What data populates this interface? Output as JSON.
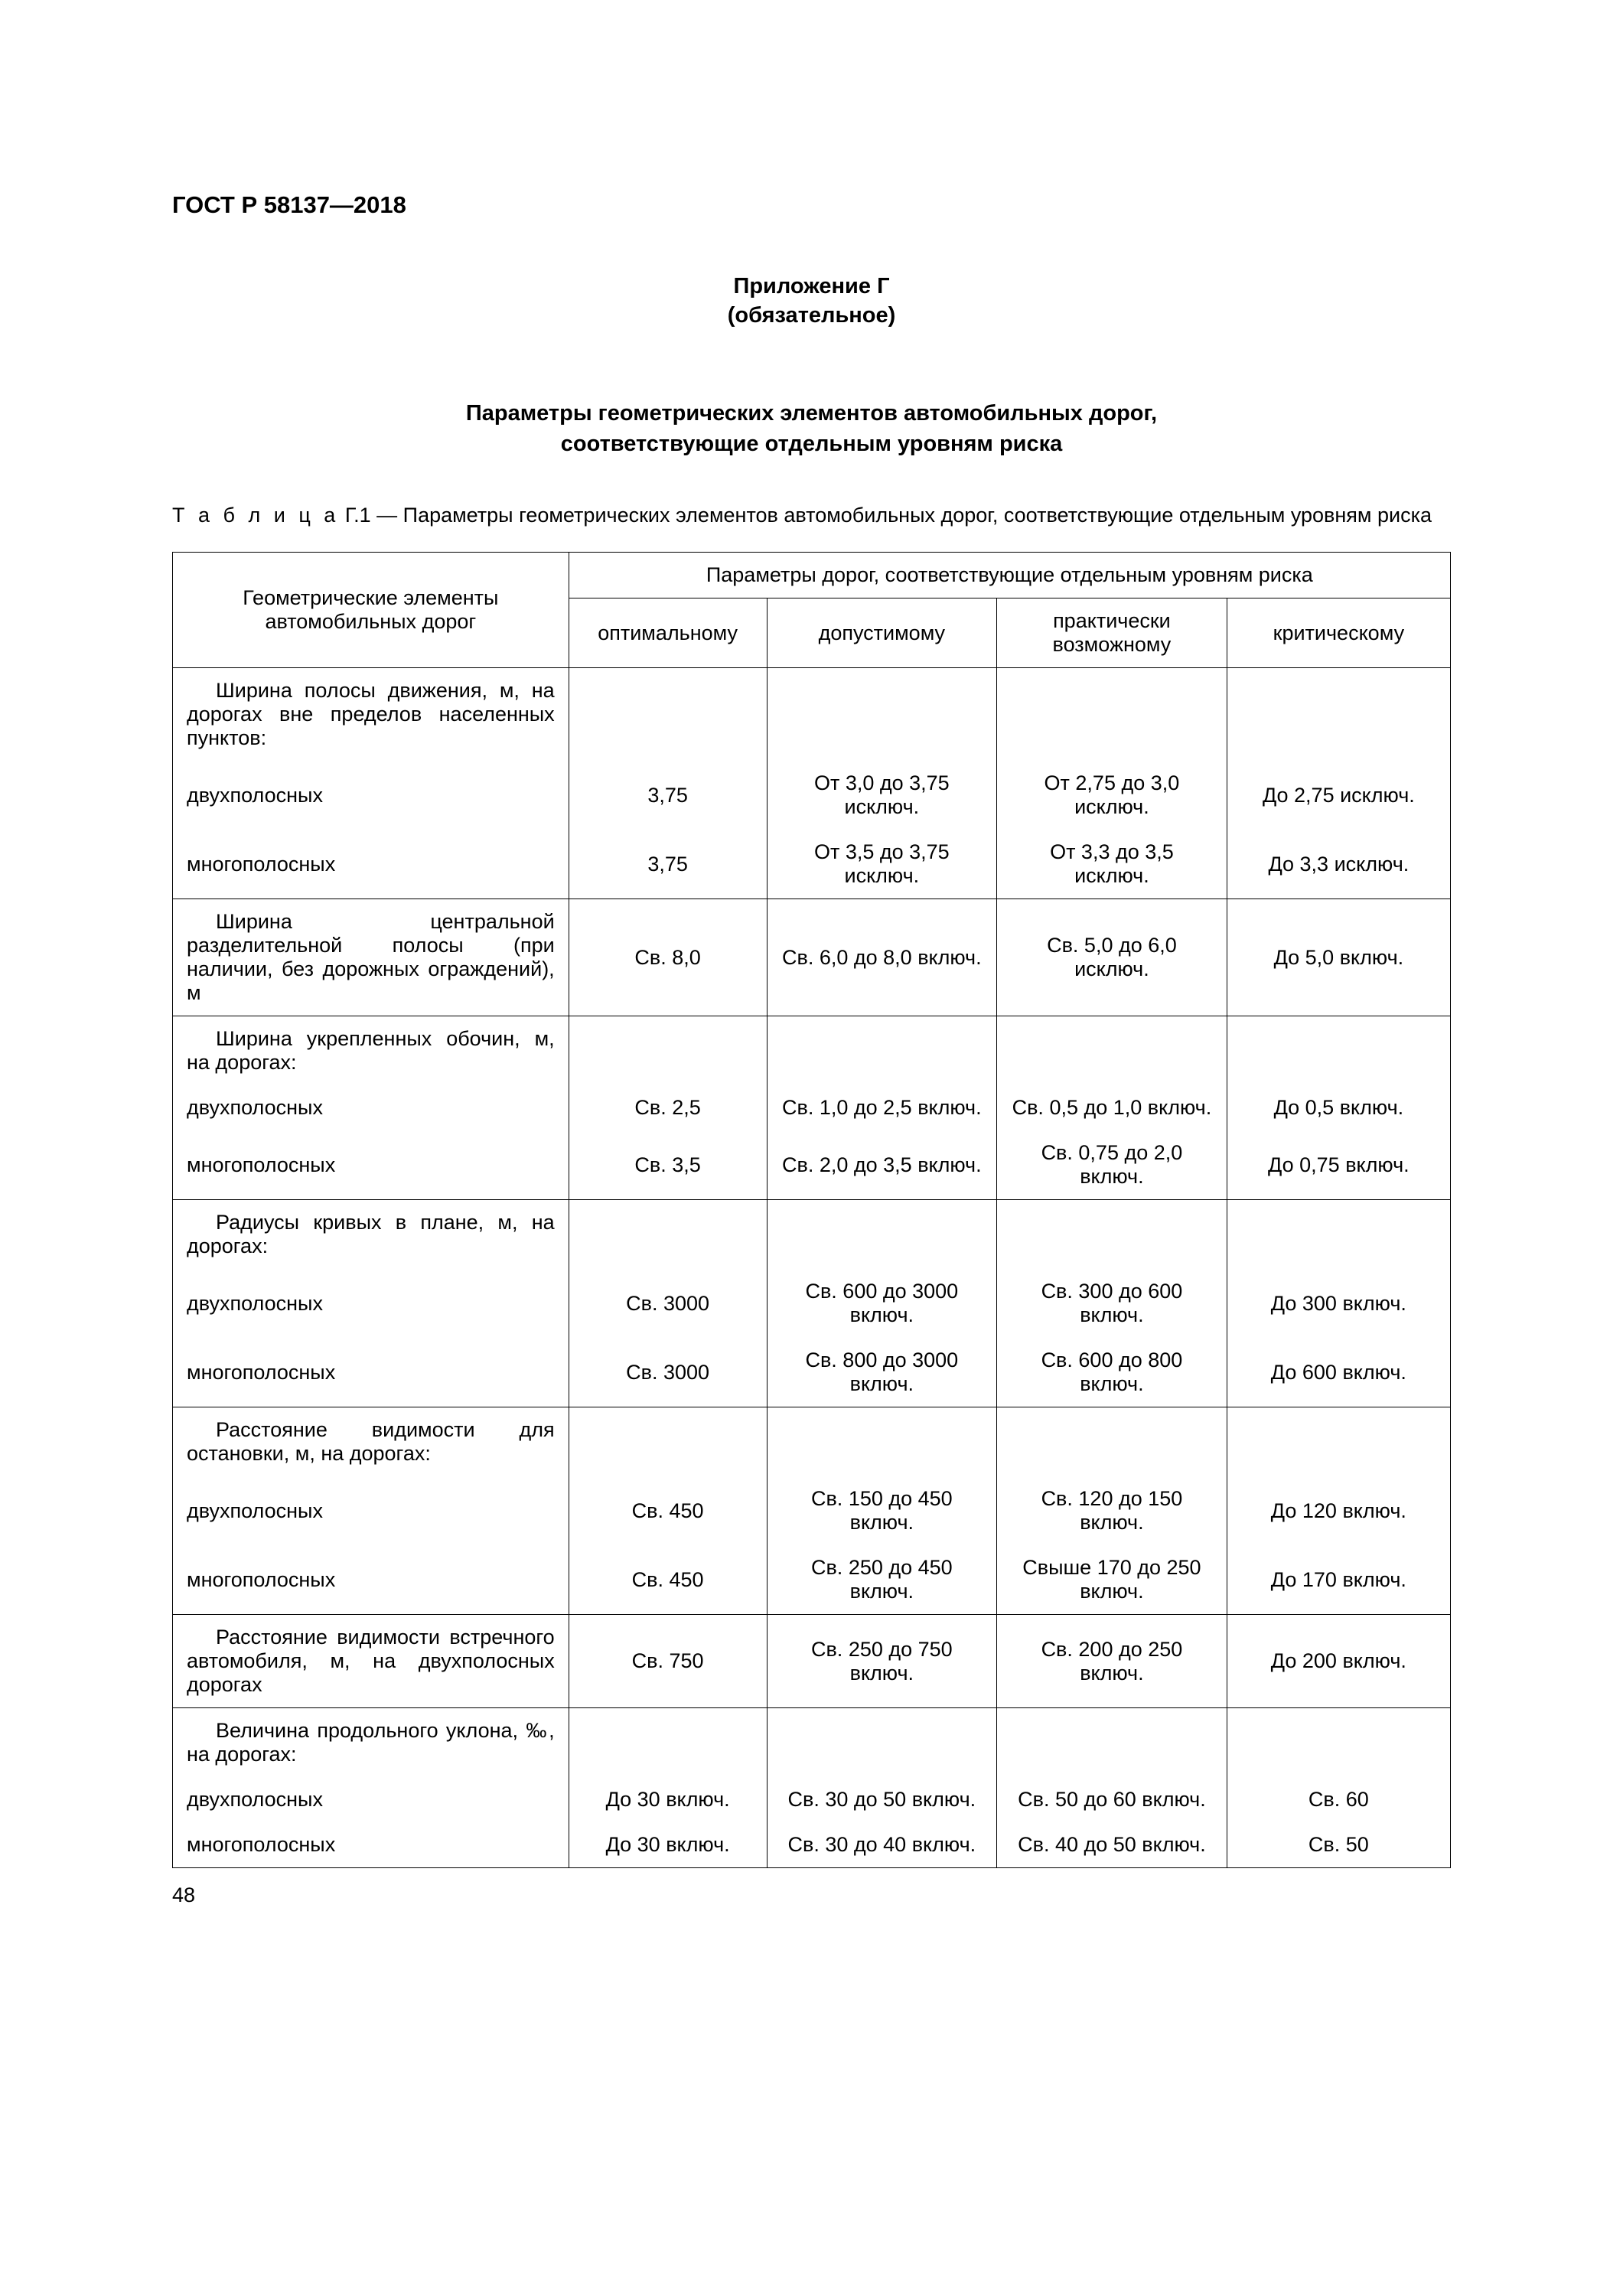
{
  "doc_id": "ГОСТ Р 58137—2018",
  "appendix_line1": "Приложение Г",
  "appendix_line2": "(обязательное)",
  "section_title_line1": "Параметры геометрических элементов автомобильных дорог,",
  "section_title_line2": "соответствующие отдельным уровням риска",
  "table_caption_prefix": "Т а б л и ц а",
  "table_caption_rest": "  Г.1 — Параметры геометрических элементов автомобильных дорог, соответствующие отдельным уровням риска",
  "page_number": "48",
  "header": {
    "row_label": "Геометрические элементы автомобильных дорог",
    "super_header": "Параметры дорог, соответствующие отдельным уровням риска",
    "cols": [
      "оптимальному",
      "допустимому",
      "практически возможному",
      "критическому"
    ]
  },
  "column_widths_pct": [
    31,
    15.5,
    18,
    18,
    17.5
  ],
  "groups": [
    {
      "label": "Ширина полосы движения, м, на дорогах вне пределов населенных пунктов:",
      "rows": [
        {
          "label": "двухполосных",
          "values": [
            "3,75",
            "От 3,0 до 3,75 исключ.",
            "От 2,75 до 3,0 исключ.",
            "До 2,75 исключ."
          ]
        },
        {
          "label": "многополосных",
          "values": [
            "3,75",
            "От 3,5 до 3,75 исключ.",
            "От 3,3 до 3,5 исключ.",
            "До 3,3 исключ."
          ]
        }
      ]
    },
    {
      "label": "Ширина центральной разделительной полосы (при наличии, без дорожных ограждений), м",
      "single_row_values": [
        "Св. 8,0",
        "Св. 6,0 до 8,0 включ.",
        "Св. 5,0 до 6,0 исключ.",
        "До 5,0 включ."
      ]
    },
    {
      "label": "Ширина укрепленных обочин, м, на дорогах:",
      "rows": [
        {
          "label": "двухполосных",
          "values": [
            "Св. 2,5",
            "Св. 1,0 до 2,5 включ.",
            "Св. 0,5 до 1,0 включ.",
            "До 0,5 включ."
          ]
        },
        {
          "label": "многополосных",
          "values": [
            "Св. 3,5",
            "Св. 2,0 до 3,5 включ.",
            "Св. 0,75 до 2,0 включ.",
            "До 0,75 включ."
          ]
        }
      ]
    },
    {
      "label": "Радиусы кривых в плане, м, на дорогах:",
      "rows": [
        {
          "label": "двухполосных",
          "values": [
            "Св. 3000",
            "Св. 600 до 3000 включ.",
            "Св. 300 до 600 включ.",
            "До 300 включ."
          ]
        },
        {
          "label": "многополосных",
          "values": [
            "Св. 3000",
            "Св. 800 до 3000 включ.",
            "Св. 600 до 800 включ.",
            "До 600 включ."
          ]
        }
      ]
    },
    {
      "label": "Расстояние видимости для остановки, м, на дорогах:",
      "rows": [
        {
          "label": "двухполосных",
          "values": [
            "Св. 450",
            "Св. 150 до 450 включ.",
            "Св. 120 до 150 включ.",
            "До 120 включ."
          ]
        },
        {
          "label": "многополосных",
          "values": [
            "Св. 450",
            "Св. 250 до 450 включ.",
            "Свыше 170 до 250 включ.",
            "До 170 включ."
          ]
        }
      ]
    },
    {
      "label": "Расстояние видимости встречного автомобиля, м, на двухполосных дорогах",
      "single_row_values": [
        "Св. 750",
        "Св. 250 до 750 включ.",
        "Св. 200 до 250 включ.",
        "До 200 включ."
      ]
    },
    {
      "label": "Величина продольного уклона, ‰, на дорогах:",
      "rows": [
        {
          "label": "двухполосных",
          "values": [
            "До 30 включ.",
            "Св. 30 до 50 включ.",
            "Св. 50 до 60 включ.",
            "Св. 60"
          ]
        },
        {
          "label": "многополосных",
          "values": [
            "До 30 включ.",
            "Св. 30 до 40 включ.",
            "Св. 40 до 50 включ.",
            "Св. 50"
          ]
        }
      ]
    }
  ]
}
